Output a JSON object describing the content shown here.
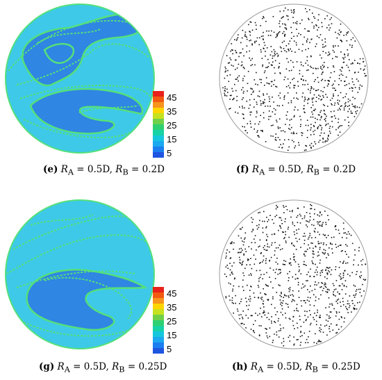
{
  "panels": [
    {
      "id": "e",
      "kind": "field",
      "caption": {
        "letter": "(e)",
        "ra_sym": "R",
        "ra_sub": "A",
        "ra_val": " = 0.5D,",
        "rb_sym": "R",
        "rb_sub": "B",
        "rb_val": " = 0.2D"
      }
    },
    {
      "id": "f",
      "kind": "particles",
      "caption": {
        "letter": "(f)",
        "ra_sym": "R",
        "ra_sub": "A",
        "ra_val": " = 0.5D,",
        "rb_sym": "R",
        "rb_sub": "B",
        "rb_val": " = 0.2D"
      }
    },
    {
      "id": "g",
      "kind": "field",
      "caption": {
        "letter": "(g)",
        "ra_sym": "R",
        "ra_sub": "A",
        "ra_val": " = 0.5D,",
        "rb_sym": "R",
        "rb_sub": "B",
        "rb_val": " = 0.25D"
      }
    },
    {
      "id": "h",
      "kind": "particles",
      "caption": {
        "letter": "(h)",
        "ra_sym": "R",
        "ra_sub": "A",
        "ra_val": " = 0.5D,",
        "rb_sym": "R",
        "rb_sub": "B",
        "rb_val": " = 0.25D"
      }
    }
  ],
  "colorbar": {
    "labels": [
      "45",
      "35",
      "25",
      "15",
      "5"
    ],
    "colors": [
      "#e8211b",
      "#f25a12",
      "#f7941d",
      "#ffd500",
      "#c6e11f",
      "#6fd14a",
      "#2fd071",
      "#17d2a5",
      "#14c7dd",
      "#1aa8f0",
      "#1b7ef0",
      "#1e55e0"
    ]
  },
  "colors": {
    "field_base": "#3ec9e8",
    "field_low": "#2f86e3",
    "field_stripe": "#55e07a",
    "circle_stroke": "#9a9a9a",
    "particle": "#111111"
  }
}
